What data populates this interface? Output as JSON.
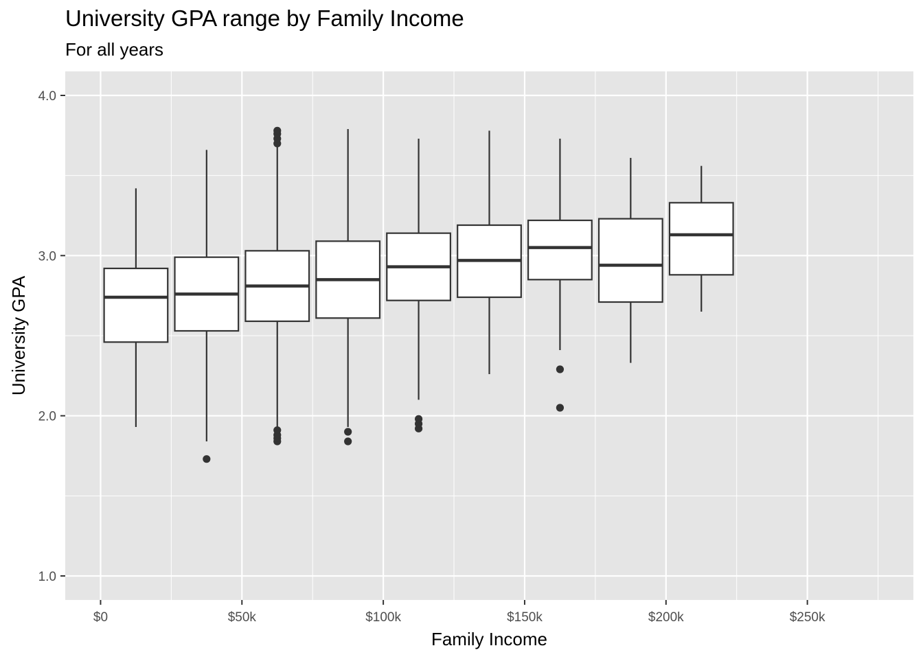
{
  "chart_data": {
    "type": "box",
    "title": "University GPA range by Family Income",
    "subtitle": "For all years",
    "xlabel": "Family Income",
    "ylabel": "University GPA",
    "xlim": [
      -12500,
      287500
    ],
    "ylim": [
      0.85,
      4.15
    ],
    "x_ticks": [
      {
        "value": 0,
        "label": "$0"
      },
      {
        "value": 50000,
        "label": "$50k"
      },
      {
        "value": 100000,
        "label": "$100k"
      },
      {
        "value": 150000,
        "label": "$150k"
      },
      {
        "value": 200000,
        "label": "$200k"
      },
      {
        "value": 250000,
        "label": "$250k"
      }
    ],
    "y_ticks": [
      {
        "value": 1.0,
        "label": "1.0"
      },
      {
        "value": 2.0,
        "label": "2.0"
      },
      {
        "value": 3.0,
        "label": "3.0"
      },
      {
        "value": 4.0,
        "label": "4.0"
      }
    ],
    "grid": true,
    "boxes": [
      {
        "x": 12500,
        "whisker_low": 1.93,
        "q1": 2.46,
        "median": 2.74,
        "q3": 2.92,
        "whisker_high": 3.42,
        "outliers": []
      },
      {
        "x": 37500,
        "whisker_low": 1.84,
        "q1": 2.53,
        "median": 2.76,
        "q3": 2.99,
        "whisker_high": 3.66,
        "outliers": [
          1.73
        ]
      },
      {
        "x": 62500,
        "whisker_low": 1.91,
        "q1": 2.59,
        "median": 2.81,
        "q3": 3.03,
        "whisker_high": 3.69,
        "outliers": [
          1.84,
          1.86,
          1.88,
          1.91,
          3.7,
          3.73,
          3.76,
          3.78
        ]
      },
      {
        "x": 87500,
        "whisker_low": 1.93,
        "q1": 2.61,
        "median": 2.85,
        "q3": 3.09,
        "whisker_high": 3.79,
        "outliers": [
          1.84,
          1.9
        ]
      },
      {
        "x": 112500,
        "whisker_low": 2.1,
        "q1": 2.72,
        "median": 2.93,
        "q3": 3.14,
        "whisker_high": 3.73,
        "outliers": [
          1.92,
          1.95,
          1.98
        ]
      },
      {
        "x": 137500,
        "whisker_low": 2.26,
        "q1": 2.74,
        "median": 2.97,
        "q3": 3.19,
        "whisker_high": 3.78,
        "outliers": []
      },
      {
        "x": 162500,
        "whisker_low": 2.41,
        "q1": 2.85,
        "median": 3.05,
        "q3": 3.22,
        "whisker_high": 3.73,
        "outliers": [
          2.05,
          2.29
        ]
      },
      {
        "x": 187500,
        "whisker_low": 2.33,
        "q1": 2.71,
        "median": 2.94,
        "q3": 3.23,
        "whisker_high": 3.61,
        "outliers": []
      },
      {
        "x": 212500,
        "whisker_low": 2.65,
        "q1": 2.88,
        "median": 3.13,
        "q3": 3.33,
        "whisker_high": 3.56,
        "outliers": []
      }
    ],
    "colors": {
      "panel": "#e5e5e5",
      "grid": "#ffffff",
      "box_fill": "#ffffff",
      "box_stroke": "#333333",
      "tick": "#333333",
      "tick_label": "#4d4d4d"
    }
  }
}
